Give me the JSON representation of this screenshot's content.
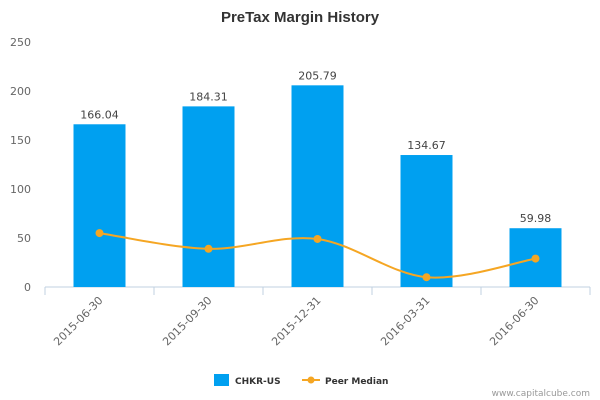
{
  "chart_data": {
    "type": "bar",
    "title": "PreTax Margin History",
    "categories": [
      "2015-06-30",
      "2015-09-30",
      "2015-12-31",
      "2016-03-31",
      "2016-06-30"
    ],
    "series": [
      {
        "name": "CHKR-US",
        "type": "bar",
        "values": [
          166.04,
          184.31,
          205.79,
          134.67,
          59.98
        ],
        "value_labels": [
          "166.04",
          "184.31",
          "205.79",
          "134.67",
          "59.98"
        ],
        "color": "#00a0f0"
      },
      {
        "name": "Peer Median",
        "type": "line",
        "values": [
          55,
          39,
          49,
          10,
          29
        ],
        "color": "#f5a623"
      }
    ],
    "y_ticks": [
      "0",
      "50",
      "100",
      "150",
      "200",
      "250"
    ],
    "ylim": [
      0,
      250
    ],
    "grid": false,
    "legend": "bottom-center"
  },
  "credit": "www.capitalcube.com"
}
